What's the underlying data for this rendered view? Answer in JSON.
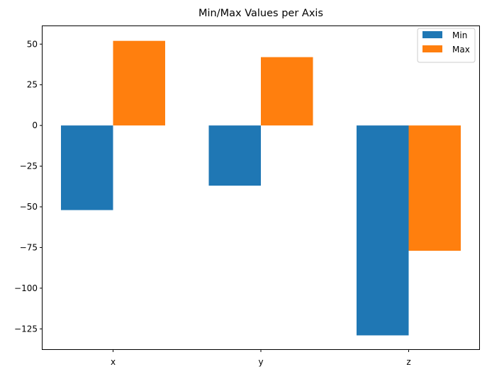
{
  "chart_data": {
    "type": "bar",
    "title": "Min/Max Values per Axis",
    "xlabel": "",
    "ylabel": "",
    "categories": [
      "x",
      "y",
      "z"
    ],
    "series": [
      {
        "name": "Min",
        "values": [
          -52,
          -37,
          -129
        ],
        "color": "#1f77b4"
      },
      {
        "name": "Max",
        "values": [
          52,
          42,
          -77
        ],
        "color": "#ff7f0e"
      }
    ],
    "ylim": [
      -137.5,
      61
    ],
    "yticks": [
      50,
      25,
      0,
      -25,
      -50,
      -75,
      -100,
      -125
    ],
    "ytick_labels": [
      "50",
      "25",
      "0",
      "−25",
      "−50",
      "−75",
      "−100",
      "−125"
    ],
    "grid": false,
    "legend_position": "top-right"
  }
}
